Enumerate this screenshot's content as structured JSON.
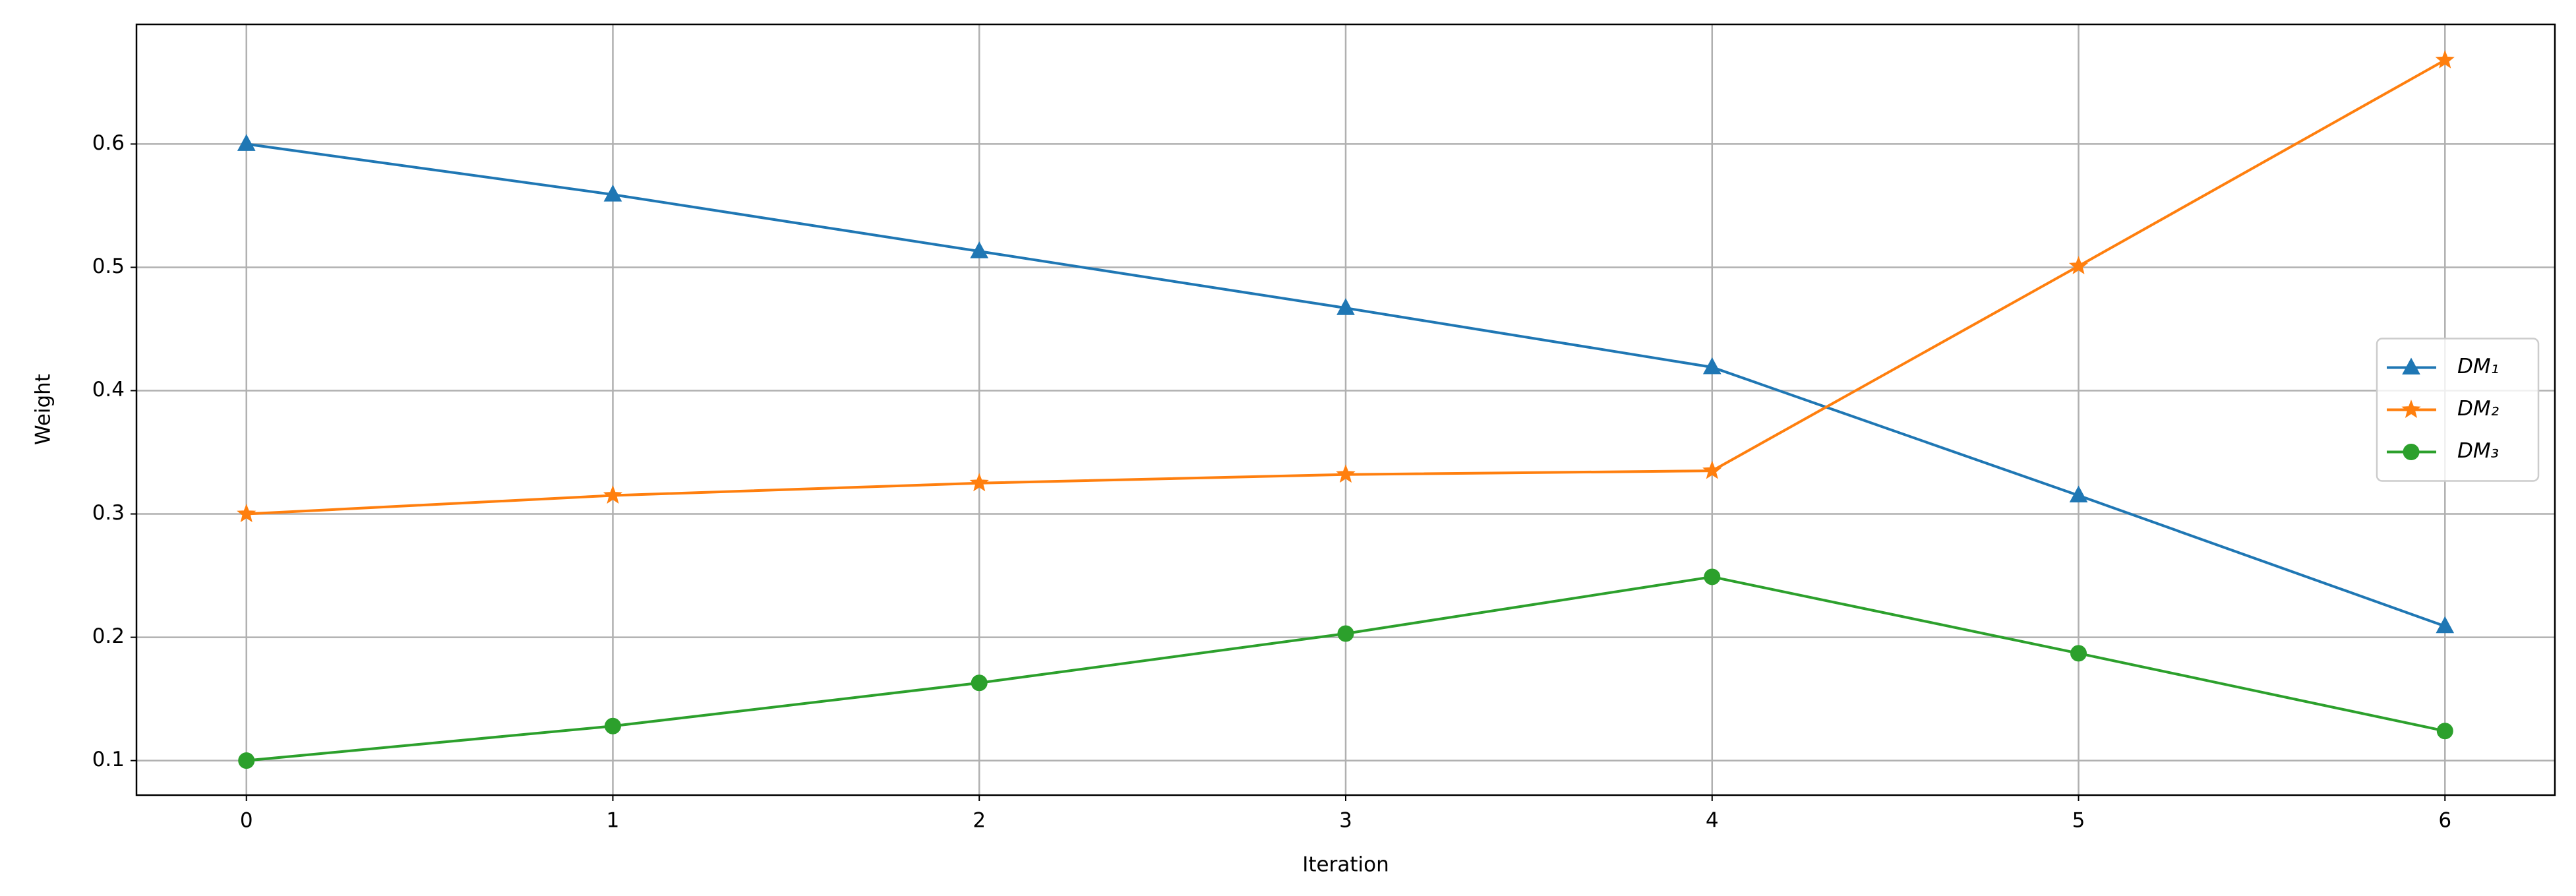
{
  "chart_data": {
    "type": "line",
    "x": [
      0,
      1,
      2,
      3,
      4,
      5,
      6
    ],
    "xlabel": "Iteration",
    "ylabel": "Weight",
    "xlim": [
      -0.3,
      6.3
    ],
    "xticks": [
      0,
      1,
      2,
      3,
      4,
      5,
      6
    ],
    "ylim": [
      0.072,
      0.697
    ],
    "yticks": [
      0.1,
      0.2,
      0.3,
      0.4,
      0.5,
      0.6
    ],
    "grid": true,
    "legend": "center right",
    "series": [
      {
        "name": "DM₁",
        "color": "#1f77b4",
        "marker": "triangle",
        "values": [
          0.6,
          0.559,
          0.513,
          0.467,
          0.419,
          0.315,
          0.209
        ]
      },
      {
        "name": "DM₂",
        "color": "#ff7f0e",
        "marker": "star",
        "values": [
          0.3,
          0.315,
          0.325,
          0.332,
          0.335,
          0.501,
          0.668
        ]
      },
      {
        "name": "DM₃",
        "color": "#2ca02c",
        "marker": "circle",
        "values": [
          0.1,
          0.128,
          0.163,
          0.203,
          0.249,
          0.187,
          0.124
        ]
      }
    ]
  }
}
